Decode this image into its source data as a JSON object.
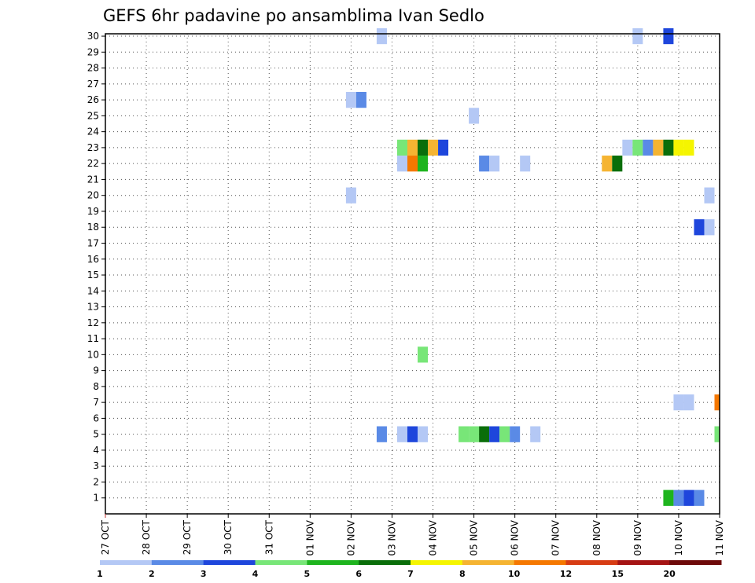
{
  "chart_data": {
    "type": "heatmap",
    "title": "GEFS 6hr padavine po ansamblima Ivan Sedlo",
    "xlabel": "",
    "ylabel": "",
    "x_tick_labels": [
      "27 OCT",
      "28 OCT",
      "29 OCT",
      "30 OCT",
      "31 OCT",
      "01 NOV",
      "02 NOV",
      "03 NOV",
      "04 NOV",
      "05 NOV",
      "06 NOV",
      "07 NOV",
      "08 NOV",
      "09 NOV",
      "10 NOV",
      "11 NOV"
    ],
    "y_tick_labels": [
      "1",
      "2",
      "3",
      "4",
      "5",
      "6",
      "7",
      "8",
      "9",
      "10",
      "11",
      "12",
      "13",
      "14",
      "15",
      "16",
      "17",
      "18",
      "19",
      "20",
      "21",
      "22",
      "23",
      "24",
      "25",
      "26",
      "27",
      "28",
      "29",
      "30"
    ],
    "x_unit": "6-hour step since 27 OCT 00Z",
    "xlim": [
      0,
      60
    ],
    "ylim": [
      0,
      30
    ],
    "grid": true,
    "colorbar": {
      "labels": [
        "1",
        "2",
        "3",
        "4",
        "5",
        "6",
        "7",
        "8",
        "10",
        "12",
        "15",
        "20"
      ],
      "colors": [
        "#b4c8f5",
        "#5a8ae6",
        "#1e46dc",
        "#78e678",
        "#1eb41e",
        "#0a6e0a",
        "#f5f500",
        "#f5b432",
        "#f57800",
        "#d73c14",
        "#a51414",
        "#6e0a0a"
      ]
    },
    "cells": [
      {
        "m": 30,
        "t": 27,
        "v": 1
      },
      {
        "m": 30,
        "t": 52,
        "v": 1
      },
      {
        "m": 30,
        "t": 55,
        "v": 3
      },
      {
        "m": 26,
        "t": 24,
        "v": 1
      },
      {
        "m": 26,
        "t": 25,
        "v": 2
      },
      {
        "m": 25,
        "t": 36,
        "v": 1
      },
      {
        "m": 23,
        "t": 29,
        "v": 4
      },
      {
        "m": 23,
        "t": 30,
        "v": 8
      },
      {
        "m": 23,
        "t": 31,
        "v": 6
      },
      {
        "m": 23,
        "t": 32,
        "v": 8
      },
      {
        "m": 23,
        "t": 33,
        "v": 3
      },
      {
        "m": 23,
        "t": 51,
        "v": 1
      },
      {
        "m": 23,
        "t": 52,
        "v": 4
      },
      {
        "m": 23,
        "t": 53,
        "v": 2
      },
      {
        "m": 23,
        "t": 54,
        "v": 8
      },
      {
        "m": 23,
        "t": 55,
        "v": 6
      },
      {
        "m": 23,
        "t": 56,
        "v": 7
      },
      {
        "m": 23,
        "t": 57,
        "v": 7
      },
      {
        "m": 22,
        "t": 29,
        "v": 1
      },
      {
        "m": 22,
        "t": 30,
        "v": 10
      },
      {
        "m": 22,
        "t": 31,
        "v": 5
      },
      {
        "m": 22,
        "t": 37,
        "v": 2
      },
      {
        "m": 22,
        "t": 38,
        "v": 1
      },
      {
        "m": 22,
        "t": 41,
        "v": 1
      },
      {
        "m": 22,
        "t": 49,
        "v": 8
      },
      {
        "m": 22,
        "t": 50,
        "v": 6
      },
      {
        "m": 20,
        "t": 24,
        "v": 1
      },
      {
        "m": 20,
        "t": 59,
        "v": 1
      },
      {
        "m": 18,
        "t": 58,
        "v": 3
      },
      {
        "m": 18,
        "t": 59,
        "v": 1
      },
      {
        "m": 10,
        "t": 31,
        "v": 4
      },
      {
        "m": 7,
        "t": 56,
        "v": 1
      },
      {
        "m": 7,
        "t": 57,
        "v": 1
      },
      {
        "m": 7,
        "t": 60,
        "v": 10
      },
      {
        "m": 5,
        "t": 27,
        "v": 2
      },
      {
        "m": 5,
        "t": 29,
        "v": 1
      },
      {
        "m": 5,
        "t": 30,
        "v": 3
      },
      {
        "m": 5,
        "t": 31,
        "v": 1
      },
      {
        "m": 5,
        "t": 35,
        "v": 4
      },
      {
        "m": 5,
        "t": 36,
        "v": 4
      },
      {
        "m": 5,
        "t": 37,
        "v": 6
      },
      {
        "m": 5,
        "t": 38,
        "v": 3
      },
      {
        "m": 5,
        "t": 39,
        "v": 4
      },
      {
        "m": 5,
        "t": 40,
        "v": 2
      },
      {
        "m": 5,
        "t": 42,
        "v": 1
      },
      {
        "m": 5,
        "t": 60,
        "v": 4
      },
      {
        "m": 1,
        "t": 55,
        "v": 5
      },
      {
        "m": 1,
        "t": 56,
        "v": 2
      },
      {
        "m": 1,
        "t": 57,
        "v": 3
      },
      {
        "m": 1,
        "t": 58,
        "v": 2
      }
    ]
  }
}
